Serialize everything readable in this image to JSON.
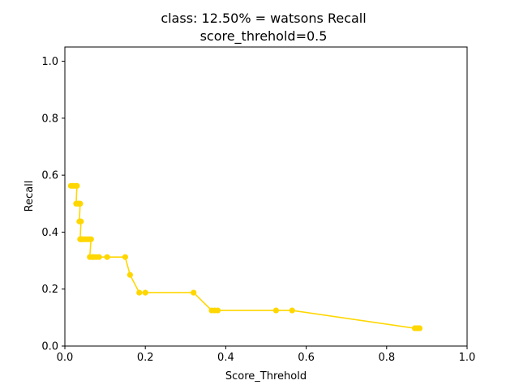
{
  "chart_data": {
    "type": "line",
    "title": "class: 12.50% = watsons Recall",
    "subtitle": "score_threhold=0.5",
    "xlabel": "Score_Threhold",
    "ylabel": "Recall",
    "xlim": [
      0.0,
      1.0
    ],
    "ylim": [
      0.0,
      1.05
    ],
    "xticks": [
      "0.0",
      "0.2",
      "0.4",
      "0.6",
      "0.8",
      "1.0"
    ],
    "yticks": [
      "0.0",
      "0.2",
      "0.4",
      "0.6",
      "0.8",
      "1.0"
    ],
    "grid": false,
    "series": [
      {
        "color": "#ffd700",
        "marker": "circle",
        "x": [
          0.015,
          0.02,
          0.025,
          0.03,
          0.028,
          0.032,
          0.035,
          0.038,
          0.036,
          0.04,
          0.038,
          0.042,
          0.04,
          0.045,
          0.05,
          0.055,
          0.06,
          0.065,
          0.062,
          0.068,
          0.072,
          0.078,
          0.085,
          0.105,
          0.15,
          0.162,
          0.185,
          0.2,
          0.32,
          0.365,
          0.372,
          0.38,
          0.525,
          0.565,
          0.87,
          0.876,
          0.882
        ],
        "y": [
          0.5625,
          0.5625,
          0.5625,
          0.5625,
          0.5,
          0.5,
          0.5,
          0.5,
          0.4375,
          0.4375,
          0.375,
          0.375,
          0.375,
          0.375,
          0.375,
          0.375,
          0.375,
          0.375,
          0.3125,
          0.3125,
          0.3125,
          0.3125,
          0.3125,
          0.3125,
          0.3125,
          0.25,
          0.1875,
          0.1875,
          0.1875,
          0.125,
          0.125,
          0.125,
          0.125,
          0.125,
          0.0625,
          0.0625,
          0.0625
        ]
      }
    ]
  }
}
